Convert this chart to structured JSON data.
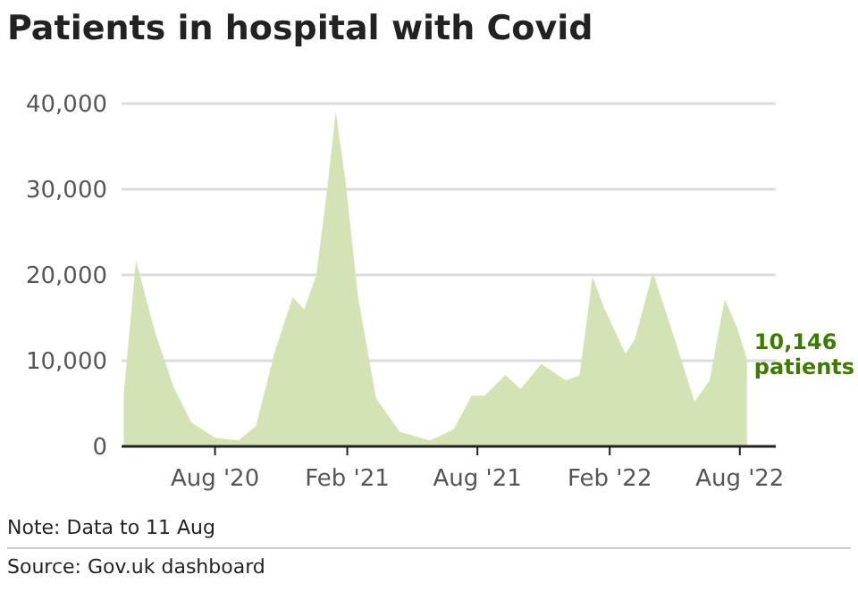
{
  "chart_data": {
    "type": "area",
    "title": "Patients in hospital with Covid",
    "x": [
      "2020-03-27",
      "2020-04-13",
      "2020-05-10",
      "2020-06-04",
      "2020-06-29",
      "2020-08-01",
      "2020-09-03",
      "2020-09-27",
      "2020-10-23",
      "2020-11-17",
      "2020-12-03",
      "2020-12-20",
      "2021-01-04",
      "2021-01-16",
      "2021-01-30",
      "2021-02-16",
      "2021-03-13",
      "2021-04-15",
      "2021-05-26",
      "2021-06-04",
      "2021-06-29",
      "2021-07-24",
      "2021-08-11",
      "2021-09-09",
      "2021-09-30",
      "2021-10-29",
      "2021-12-02",
      "2021-12-21",
      "2021-12-31",
      "2022-01-08",
      "2022-01-25",
      "2022-02-23",
      "2022-03-08",
      "2022-04-02",
      "2022-04-27",
      "2022-05-30",
      "2022-06-20",
      "2022-07-11",
      "2022-07-28",
      "2022-08-11"
    ],
    "series": [
      {
        "color": "#d4e3b5",
        "values": [
          6000,
          21700,
          13200,
          7000,
          2800,
          1000,
          700,
          2400,
          11000,
          17400,
          16000,
          20000,
          30000,
          39100,
          30600,
          17400,
          5600,
          1700,
          700,
          1000,
          2000,
          5900,
          5900,
          8300,
          6700,
          9600,
          7700,
          8300,
          14600,
          19800,
          16000,
          10800,
          12500,
          20300,
          13900,
          5200,
          7700,
          17200,
          13900,
          10146
        ]
      }
    ],
    "xlim": [
      "2020-03-24",
      "2022-09-20"
    ],
    "xticks": [
      {
        "value": "2020-08-01",
        "label": "Aug '20"
      },
      {
        "value": "2021-02-01",
        "label": "Feb '21"
      },
      {
        "value": "2021-08-01",
        "label": "Aug '21"
      },
      {
        "value": "2022-02-01",
        "label": "Feb '22"
      },
      {
        "value": "2022-08-01",
        "label": "Aug '22"
      }
    ],
    "ylim": [
      0,
      40000
    ],
    "yticks": [
      {
        "value": 0,
        "label": "0"
      },
      {
        "value": 10000,
        "label": "10,000"
      },
      {
        "value": 20000,
        "label": "20,000"
      },
      {
        "value": 30000,
        "label": "30,000"
      },
      {
        "value": 40000,
        "label": "40,000"
      }
    ],
    "grid": "y",
    "annotations": [
      {
        "text": "10,146 patients",
        "x": "2022-08-11",
        "y": 10146
      },
      "Note: Data to 11 Aug",
      "Source: Gov.uk dashboard"
    ]
  }
}
